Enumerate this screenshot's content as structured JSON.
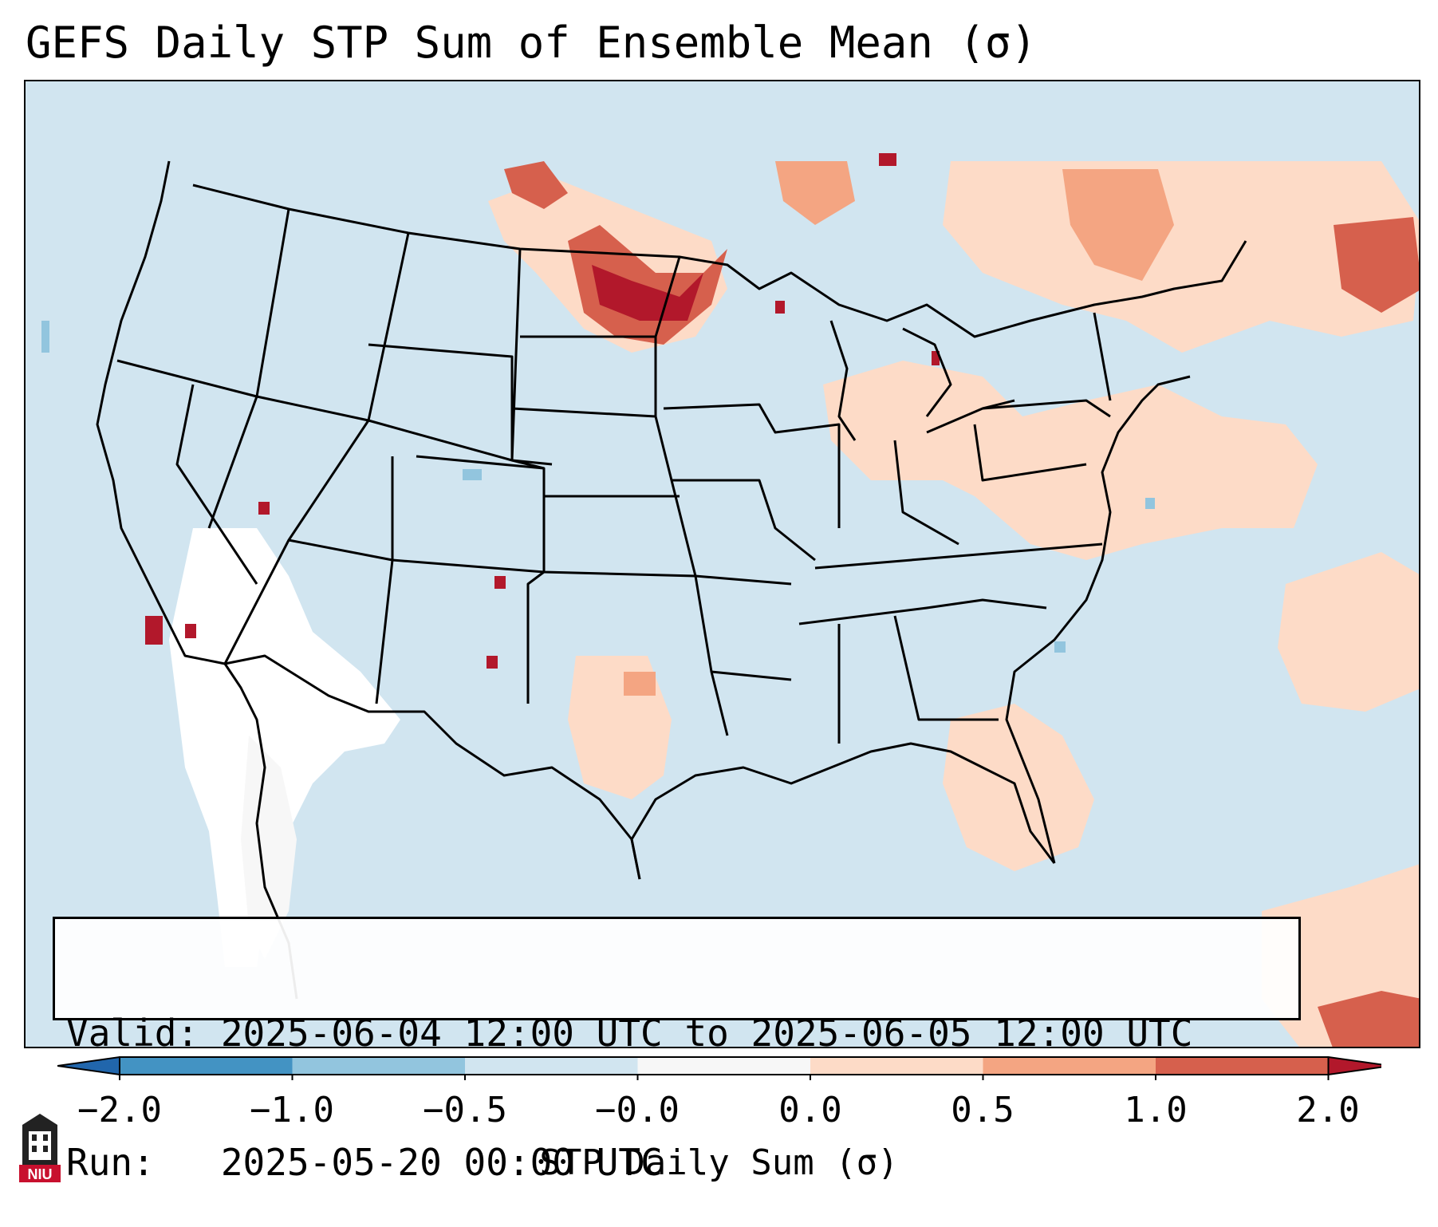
{
  "title": "GEFS Daily STP Sum of Ensemble Mean (σ)",
  "info": {
    "valid_line": "Valid: 2025-06-04 12:00 UTC to 2025-06-05 12:00 UTC",
    "run_line": "Run:   2025-05-20 00:00 UTC"
  },
  "colorbar": {
    "label": "STP Daily Sum (σ)",
    "ticks": [
      "−2.0",
      "−1.0",
      "−0.5",
      "−0.0",
      "0.0",
      "0.5",
      "1.0",
      "2.0"
    ],
    "colors": {
      "below_min": "#2166ac",
      "bin_-2_-1": "#4393c3",
      "bin_-1_-0.5": "#92c5de",
      "bin_-0.5_0": "#d1e5f0",
      "bin_0_0": "#f7f7f7",
      "bin_0_0.5": "#fddbc7",
      "bin_0.5_1": "#f4a582",
      "bin_1_2": "#d6604d",
      "above_max": "#b2182b"
    }
  },
  "logo": {
    "label": "NIU",
    "icon": "niu-logo-icon"
  },
  "map": {
    "background_color": "#d1e5f0",
    "land_boundary_color": "#000000"
  }
}
